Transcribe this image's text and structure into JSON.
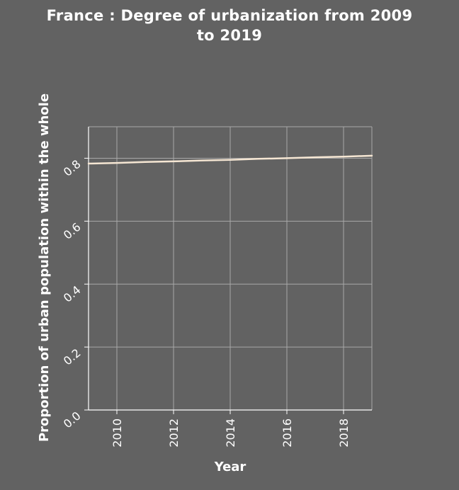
{
  "title_line1": "France : Degree of urbanization from 2009",
  "title_line2": "to 2019",
  "chart_data": {
    "type": "line",
    "title": "France : Degree of urbanization from 2009 to 2019",
    "xlabel": "Year",
    "ylabel": "Proportion of urban population within the whole",
    "xlim": [
      2009,
      2019
    ],
    "ylim": [
      0,
      0.9
    ],
    "x_ticks": [
      "2010",
      "2012",
      "2014",
      "2016",
      "2018"
    ],
    "y_ticks": [
      "0.0",
      "0.2",
      "0.4",
      "0.6",
      "0.8"
    ],
    "grid": true,
    "x": [
      2009,
      2010,
      2011,
      2012,
      2013,
      2014,
      2015,
      2016,
      2017,
      2018,
      2019
    ],
    "series": [
      {
        "values": [
          0.783,
          0.785,
          0.788,
          0.79,
          0.793,
          0.795,
          0.798,
          0.8,
          0.803,
          0.805,
          0.808
        ]
      }
    ],
    "colors": {
      "line": "#f5e6d3",
      "grid": "#a8a8a8",
      "axis": "#ffffff",
      "background": "#626262"
    }
  }
}
